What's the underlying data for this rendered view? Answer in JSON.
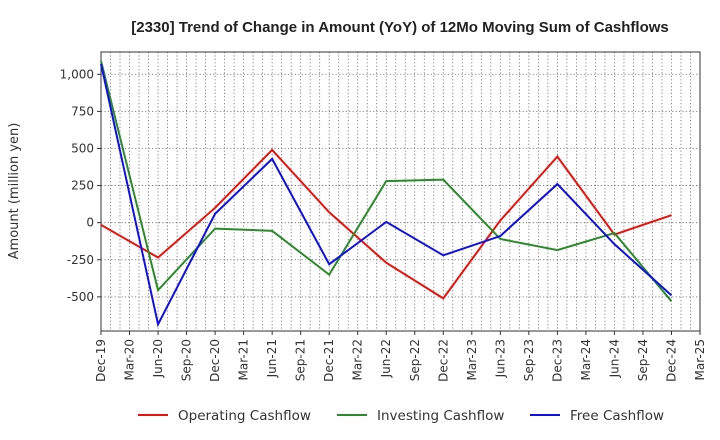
{
  "chart_data": {
    "type": "line",
    "title": "[2330]  Trend of Change in Amount (YoY) of 12Mo Moving Sum of Cashflows",
    "xlabel": "",
    "ylabel": "Amount (million yen)",
    "x": [
      "Dec-19",
      "Mar-20",
      "Jun-20",
      "Sep-20",
      "Dec-20",
      "Mar-21",
      "Jun-21",
      "Sep-21",
      "Dec-21",
      "Mar-22",
      "Jun-22",
      "Sep-22",
      "Dec-22",
      "Mar-23",
      "Jun-23",
      "Sep-23",
      "Dec-23",
      "Mar-24",
      "Jun-24",
      "Sep-24",
      "Dec-24",
      "Mar-25"
    ],
    "ylim": [
      -730,
      1150
    ],
    "yticks": [
      -500,
      -250,
      0,
      250,
      500,
      750,
      1000
    ],
    "ytick_labels": [
      "-500",
      "-250",
      "0",
      "250",
      "500",
      "750",
      "1,000"
    ],
    "grid": true,
    "legend_position": "bottom-center",
    "series": [
      {
        "name": "Operating Cashflow",
        "color": "#e8120c",
        "points": [
          [
            "Dec-19",
            -15
          ],
          [
            "Jun-20",
            -235
          ],
          [
            "Dec-20",
            100
          ],
          [
            "Jun-21",
            490
          ],
          [
            "Dec-21",
            70
          ],
          [
            "Jun-22",
            -270
          ],
          [
            "Dec-22",
            -510
          ],
          [
            "Jun-23",
            15
          ],
          [
            "Dec-23",
            445
          ],
          [
            "Jun-24",
            -80
          ],
          [
            "Dec-24",
            50
          ]
        ]
      },
      {
        "name": "Investing Cashflow",
        "color": "#2b8a2b",
        "points": [
          [
            "Dec-19",
            1090
          ],
          [
            "Jun-20",
            -455
          ],
          [
            "Dec-20",
            -40
          ],
          [
            "Jun-21",
            -55
          ],
          [
            "Dec-21",
            -350
          ],
          [
            "Jun-22",
            280
          ],
          [
            "Dec-22",
            290
          ],
          [
            "Jun-23",
            -110
          ],
          [
            "Dec-23",
            -185
          ],
          [
            "Jun-24",
            -70
          ],
          [
            "Dec-24",
            -530
          ]
        ]
      },
      {
        "name": "Free Cashflow",
        "color": "#1010e0",
        "points": [
          [
            "Dec-19",
            1070
          ],
          [
            "Jun-20",
            -685
          ],
          [
            "Dec-20",
            60
          ],
          [
            "Jun-21",
            430
          ],
          [
            "Dec-21",
            -280
          ],
          [
            "Jun-22",
            5
          ],
          [
            "Dec-22",
            -220
          ],
          [
            "Jun-23",
            -90
          ],
          [
            "Dec-23",
            260
          ],
          [
            "Jun-24",
            -145
          ],
          [
            "Dec-24",
            -490
          ]
        ]
      }
    ]
  }
}
